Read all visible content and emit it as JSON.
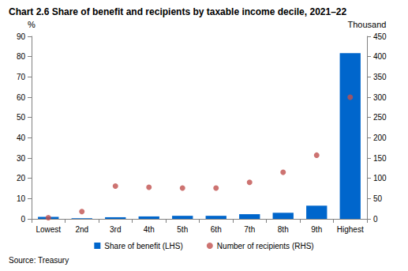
{
  "chart_data": {
    "type": "bar",
    "title": "Chart 2.6 Share of benefit and recipients by taxable income decile, 2021–22",
    "ylabel": "%",
    "y2label": "Thousand",
    "source": "Source: Treasury",
    "categories": [
      "Lowest",
      "2nd",
      "3rd",
      "4th",
      "5th",
      "6th",
      "7th",
      "8th",
      "9th",
      "Highest"
    ],
    "series": [
      {
        "name": "Share of benefit (LHS)",
        "type": "bar",
        "color": "#0066CC",
        "values": [
          1.0,
          0.3,
          0.8,
          1.2,
          1.5,
          1.5,
          2.3,
          3.0,
          6.5,
          81.7
        ]
      },
      {
        "name": "Number of recipients (RHS)",
        "type": "scatter",
        "axis": "y2",
        "marker": "circle",
        "color": "#C0504D",
        "values": [
          3,
          18,
          81,
          78,
          76,
          76,
          90,
          115,
          157,
          300
        ]
      }
    ],
    "ylim": [
      0,
      90
    ],
    "yticks": [
      0,
      10,
      20,
      30,
      40,
      50,
      60,
      70,
      80,
      90
    ],
    "y2lim": [
      0,
      450
    ],
    "y2ticks": [
      0,
      50,
      100,
      150,
      200,
      250,
      300,
      350,
      400,
      450
    ],
    "grid": false,
    "legend": "bottom"
  }
}
